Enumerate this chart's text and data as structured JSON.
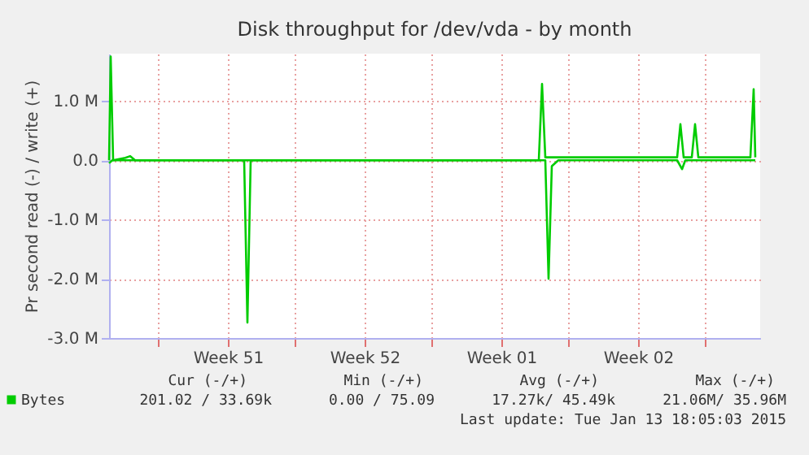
{
  "chart_data": {
    "type": "line",
    "title": "Disk throughput for /dev/vda - by month",
    "ylabel": "Pr second read (-) / write (+)",
    "xlim": [
      "2014-12-12T12:00",
      "2015-01-14T20:00"
    ],
    "xticks": [
      {
        "value": "2014-12-15T00:00",
        "label": null
      },
      {
        "value": "2014-12-18T14:00",
        "label": "Week 51"
      },
      {
        "value": "2014-12-22T00:00",
        "label": null
      },
      {
        "value": "2014-12-25T14:00",
        "label": "Week 52"
      },
      {
        "value": "2014-12-29T00:00",
        "label": null
      },
      {
        "value": "2015-01-01T14:00",
        "label": "Week 01"
      },
      {
        "value": "2015-01-05T00:00",
        "label": null
      },
      {
        "value": "2015-01-08T14:00",
        "label": "Week 02"
      },
      {
        "value": "2015-01-12T00:00",
        "label": null
      }
    ],
    "ylim": [
      -3000000,
      1800000
    ],
    "yticks": [
      {
        "value": -3000000,
        "label": "-3.0 M"
      },
      {
        "value": -2000000,
        "label": "-2.0 M"
      },
      {
        "value": -1000000,
        "label": "-1.0 M"
      },
      {
        "value": 0,
        "label": "0.0"
      },
      {
        "value": 1000000,
        "label": "1.0 M"
      }
    ],
    "grid": true,
    "legend": "bottom",
    "series": [
      {
        "name": "Bytes",
        "color": "#00cc00",
        "x": [
          "2014-12-12T12:00",
          "2014-12-12T14:00",
          "2014-12-12T17:00",
          "2014-12-13T08:00",
          "2014-12-13T14:00",
          "2014-12-13T20:00",
          "2015-01-03T12:00",
          "2015-01-03T16:00",
          "2015-01-03T20:00",
          "2015-01-10T14:00",
          "2015-01-10T18:00",
          "2015-01-10T22:00",
          "2015-01-11T08:00",
          "2015-01-11T12:00",
          "2015-01-11T16:00",
          "2015-01-14T08:00",
          "2015-01-14T12:00",
          "2015-01-14T14:00"
        ],
        "values": [
          0,
          1750000,
          0,
          40000,
          70000,
          0,
          0,
          1290000,
          50000,
          50000,
          610000,
          50000,
          50000,
          610000,
          50000,
          50000,
          1200000,
          50000
        ]
      },
      {
        "color": "#00cc00",
        "x": [
          "2014-12-12T12:00",
          "2014-12-12T16:00",
          "2014-12-19T10:00",
          "2014-12-19T14:00",
          "2014-12-19T18:00",
          "2015-01-03T20:00",
          "2015-01-04T00:00",
          "2015-01-04T04:00",
          "2015-01-04T12:00",
          "2015-01-10T14:00",
          "2015-01-10T20:00",
          "2015-01-11T00:00",
          "2015-01-14T14:00"
        ],
        "values": [
          -50000,
          0,
          0,
          -2740000,
          0,
          0,
          -2000000,
          -100000,
          0,
          0,
          -150000,
          0,
          0
        ]
      }
    ],
    "annotations": [
      "Cur (-/+)",
      "Min (-/+)",
      "Avg (-/+)",
      "Max (-/+)",
      "201.02 / 33.69k",
      "0.00 / 75.09",
      "17.27k/ 45.49k",
      "21.06M/ 35.96M",
      "Last update: Tue Jan 13 18:05:03 2015"
    ]
  }
}
